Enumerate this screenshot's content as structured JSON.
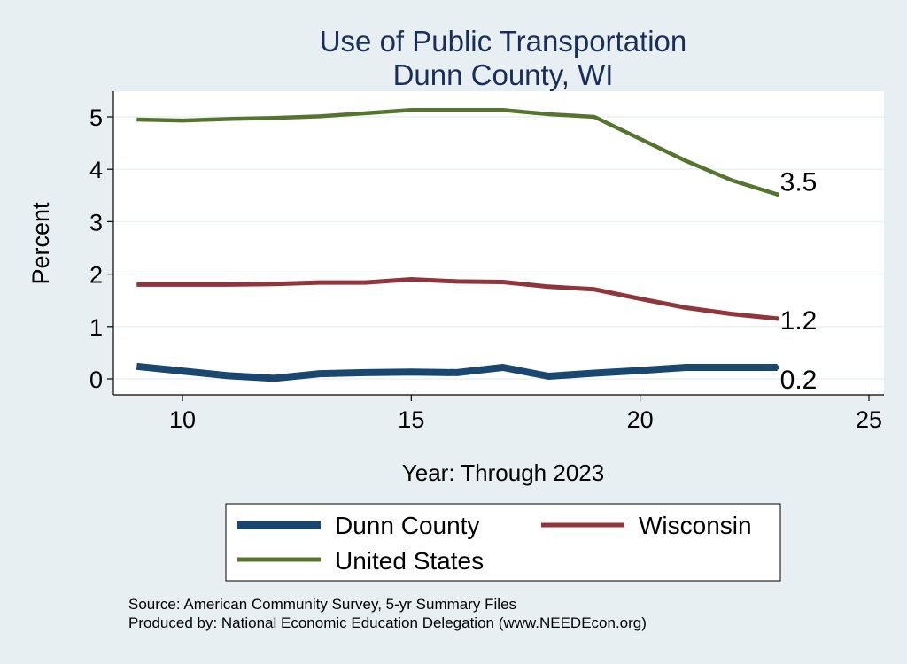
{
  "chart_data": {
    "type": "line",
    "title": "Use of Public Transportation",
    "subtitle": "Dunn County, WI",
    "xlabel": "Year: Through 2023",
    "ylabel": "Percent",
    "xlim": [
      9,
      25
    ],
    "ylim": [
      0,
      5.2
    ],
    "x_ticks": [
      10,
      15,
      20,
      25
    ],
    "y_ticks": [
      0,
      1,
      2,
      3,
      4,
      5
    ],
    "grid": true,
    "legend_position": "bottom",
    "x": [
      9,
      10,
      11,
      12,
      13,
      14,
      15,
      16,
      17,
      18,
      19,
      20,
      21,
      22,
      23
    ],
    "series": [
      {
        "name": "Dunn County",
        "color": "#1a476f",
        "values": [
          0.24,
          0.15,
          0.06,
          0.01,
          0.1,
          0.12,
          0.13,
          0.12,
          0.22,
          0.05,
          0.11,
          0.16,
          0.22,
          0.22,
          0.22
        ],
        "end_label": "0.2"
      },
      {
        "name": "Wisconsin",
        "color": "#90353b",
        "values": [
          1.8,
          1.8,
          1.8,
          1.81,
          1.84,
          1.84,
          1.9,
          1.86,
          1.85,
          1.76,
          1.71,
          1.53,
          1.36,
          1.24,
          1.15
        ],
        "end_label": "1.2"
      },
      {
        "name": "United States",
        "color": "#55752f",
        "values": [
          4.95,
          4.93,
          4.96,
          4.98,
          5.01,
          5.07,
          5.13,
          5.13,
          5.13,
          5.05,
          5.0,
          4.58,
          4.16,
          3.79,
          3.52
        ],
        "end_label": "3.5"
      }
    ],
    "notes": [
      "Source: American Community Survey, 5-yr Summary Files",
      "Produced by: National Economic Education Delegation (www.NEEDEcon.org)"
    ]
  }
}
